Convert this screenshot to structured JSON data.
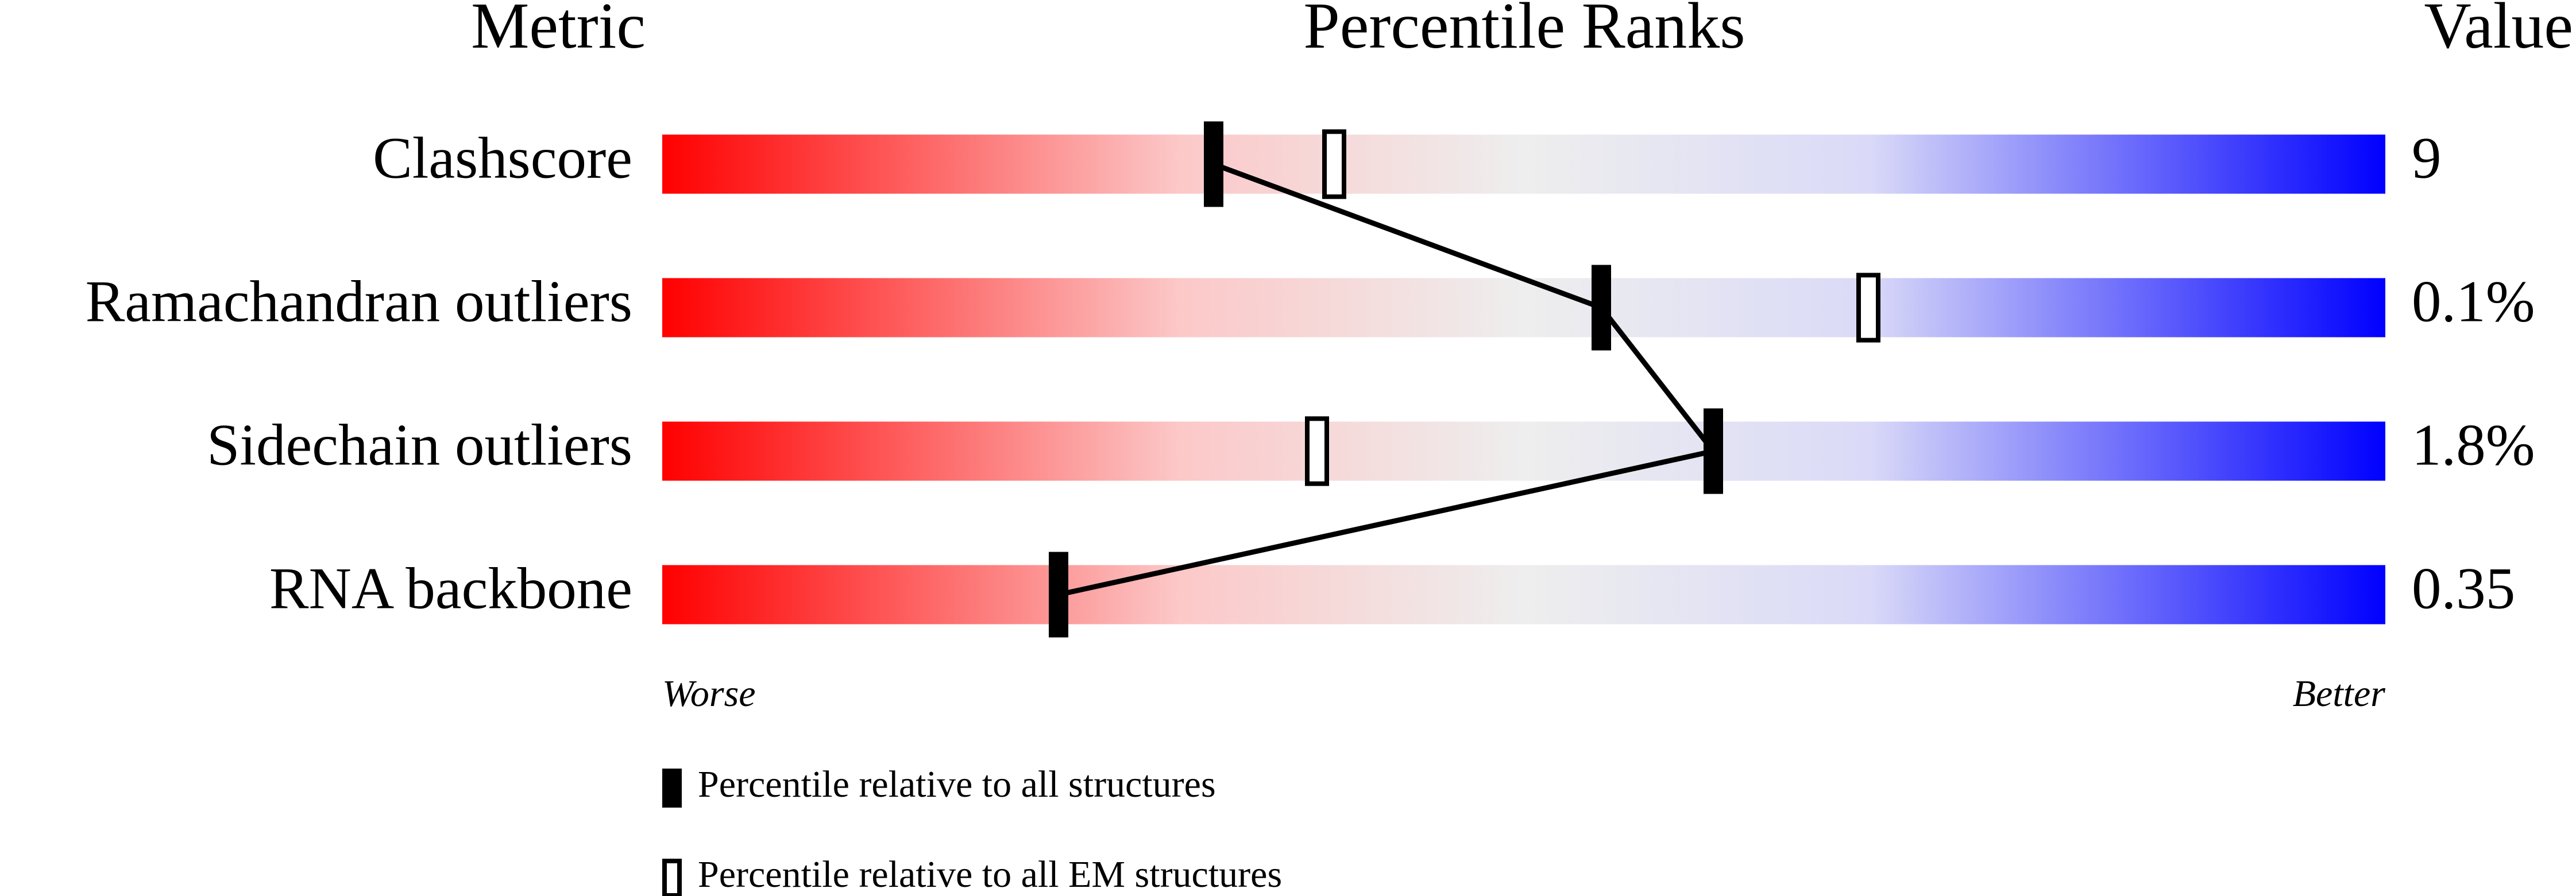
{
  "chart_data": {
    "type": "percentile-slider",
    "headers": {
      "metric": "Metric",
      "percentile": "Percentile Ranks",
      "value": "Value"
    },
    "categories": [
      "Clashscore",
      "Ramachandran outliers",
      "Sidechain outliers",
      "RNA backbone"
    ],
    "metric_values": [
      "9",
      "0.1%",
      "1.8%",
      "0.35"
    ],
    "series": [
      {
        "name": "Percentile relative to all structures",
        "style": "filled",
        "values": [
          32,
          54.5,
          61,
          23
        ]
      },
      {
        "name": "Percentile relative to all EM structures",
        "style": "hollow",
        "values": [
          39,
          70,
          38,
          null
        ]
      }
    ],
    "xlim": [
      0,
      100
    ],
    "axis_labels": {
      "low": "Worse",
      "high": "Better"
    }
  }
}
